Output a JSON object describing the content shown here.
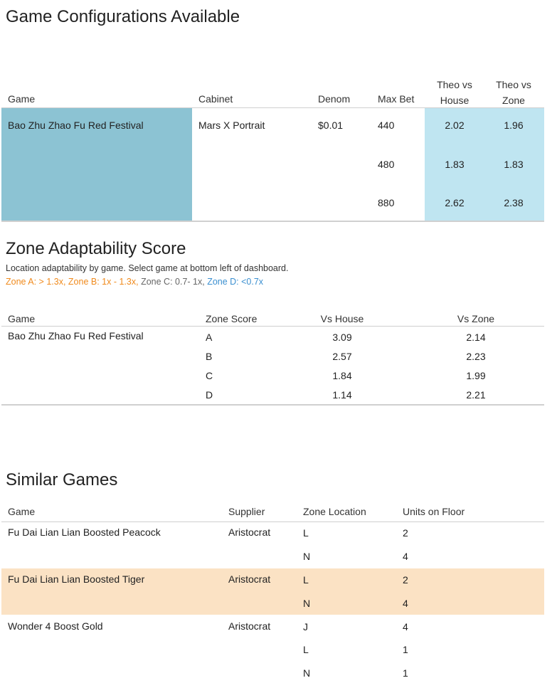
{
  "config": {
    "title": "Game Configurations Available",
    "headers": {
      "game": "Game",
      "cabinet": "Cabinet",
      "denom": "Denom",
      "max_bet": "Max Bet",
      "theo_house_1": "Theo vs",
      "theo_house_2": "House",
      "theo_zone_1": "Theo vs",
      "theo_zone_2": "Zone"
    },
    "game": "Bao Zhu Zhao Fu Red Festival",
    "cabinet": "Mars X Portrait",
    "denom": "$0.01",
    "rows": [
      {
        "max_bet": "440",
        "theo_house": "2.02",
        "theo_zone": "1.96"
      },
      {
        "max_bet": "480",
        "theo_house": "1.83",
        "theo_zone": "1.83"
      },
      {
        "max_bet": "880",
        "theo_house": "2.62",
        "theo_zone": "2.38"
      }
    ],
    "colors": {
      "game_cell": "#8cc3d3",
      "theo_cell": "#bfe5f1"
    }
  },
  "zone": {
    "title": "Zone Adaptability Score",
    "subtitle": "Location adaptability by game. Select game at bottom left of dashboard.",
    "legend": {
      "a": "Zone A: > 1.3x,",
      "b": "Zone B: 1x - 1.3x,",
      "c": "Zone C: 0.7- 1x,",
      "d": "Zone D: <0.7x"
    },
    "headers": {
      "game": "Game",
      "score": "Zone Score",
      "vs_house": "Vs House",
      "vs_zone": "Vs Zone"
    },
    "game": "Bao Zhu Zhao Fu Red Festival",
    "rows": [
      {
        "score": "A",
        "vs_house": "3.09",
        "vs_zone": "2.14"
      },
      {
        "score": "B",
        "vs_house": "2.57",
        "vs_zone": "2.23"
      },
      {
        "score": "C",
        "vs_house": "1.84",
        "vs_zone": "1.99"
      },
      {
        "score": "D",
        "vs_house": "1.14",
        "vs_zone": "2.21"
      }
    ]
  },
  "similar": {
    "title": "Similar Games",
    "headers": {
      "game": "Game",
      "supplier": "Supplier",
      "zone": "Zone Location",
      "units": "Units on Floor"
    },
    "groups": [
      {
        "game": "Fu Dai Lian Lian Boosted Peacock",
        "supplier": "Aristocrat",
        "rows": [
          {
            "zone": "L",
            "units": "2"
          },
          {
            "zone": "N",
            "units": "4"
          }
        ]
      },
      {
        "game": "Fu Dai Lian Lian Boosted Tiger",
        "supplier": "Aristocrat",
        "rows": [
          {
            "zone": "L",
            "units": "2"
          },
          {
            "zone": "N",
            "units": "4"
          }
        ]
      },
      {
        "game": "Wonder 4 Boost Gold",
        "supplier": "Aristocrat",
        "rows": [
          {
            "zone": "J",
            "units": "4"
          },
          {
            "zone": "L",
            "units": "1"
          },
          {
            "zone": "N",
            "units": "1"
          }
        ]
      }
    ],
    "colors": {
      "highlight": "#fbe2c4"
    }
  }
}
